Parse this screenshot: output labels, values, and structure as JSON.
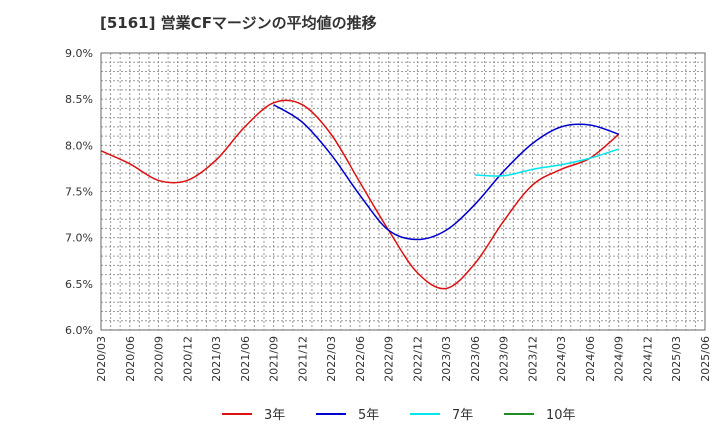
{
  "chart_data": {
    "type": "line",
    "title": "[5161]  営業CFマージンの平均値の推移",
    "xlabel": "",
    "ylabel": "",
    "x": [
      "2020/03",
      "2020/06",
      "2020/09",
      "2020/12",
      "2021/03",
      "2021/06",
      "2021/09",
      "2021/12",
      "2022/03",
      "2022/06",
      "2022/09",
      "2022/12",
      "2023/03",
      "2023/06",
      "2023/09",
      "2023/12",
      "2024/03",
      "2024/06",
      "2024/09",
      "2024/12",
      "2025/03",
      "2025/06"
    ],
    "y_ticks": [
      "9.0%",
      "8.5%",
      "8.0%",
      "7.5%",
      "7.0%",
      "6.5%",
      "6.0%"
    ],
    "ylim": [
      6.0,
      9.0
    ],
    "grid": true,
    "legend_position": "bottom",
    "series": [
      {
        "name": "3年",
        "color": "#dd1111",
        "values": [
          7.94,
          7.8,
          7.62,
          7.62,
          7.84,
          8.2,
          8.46,
          8.44,
          8.12,
          7.6,
          7.08,
          6.62,
          6.45,
          6.72,
          7.18,
          7.57,
          7.74,
          7.86,
          8.12,
          null,
          null,
          null
        ]
      },
      {
        "name": "5年",
        "color": "#0000cc",
        "values": [
          null,
          null,
          null,
          null,
          null,
          null,
          8.44,
          8.25,
          7.9,
          7.46,
          7.08,
          6.98,
          7.08,
          7.36,
          7.72,
          8.02,
          8.2,
          8.22,
          8.12,
          null,
          null,
          null
        ]
      },
      {
        "name": "7年",
        "color": "#00e5ee",
        "values": [
          null,
          null,
          null,
          null,
          null,
          null,
          null,
          null,
          null,
          null,
          null,
          null,
          null,
          7.68,
          7.67,
          7.74,
          7.79,
          7.86,
          7.96,
          null,
          null,
          null
        ]
      },
      {
        "name": "10年",
        "color": "#228b22",
        "values": [
          null,
          null,
          null,
          null,
          null,
          null,
          null,
          null,
          null,
          null,
          null,
          null,
          null,
          null,
          null,
          null,
          null,
          null,
          null,
          null,
          null,
          null
        ]
      }
    ]
  }
}
